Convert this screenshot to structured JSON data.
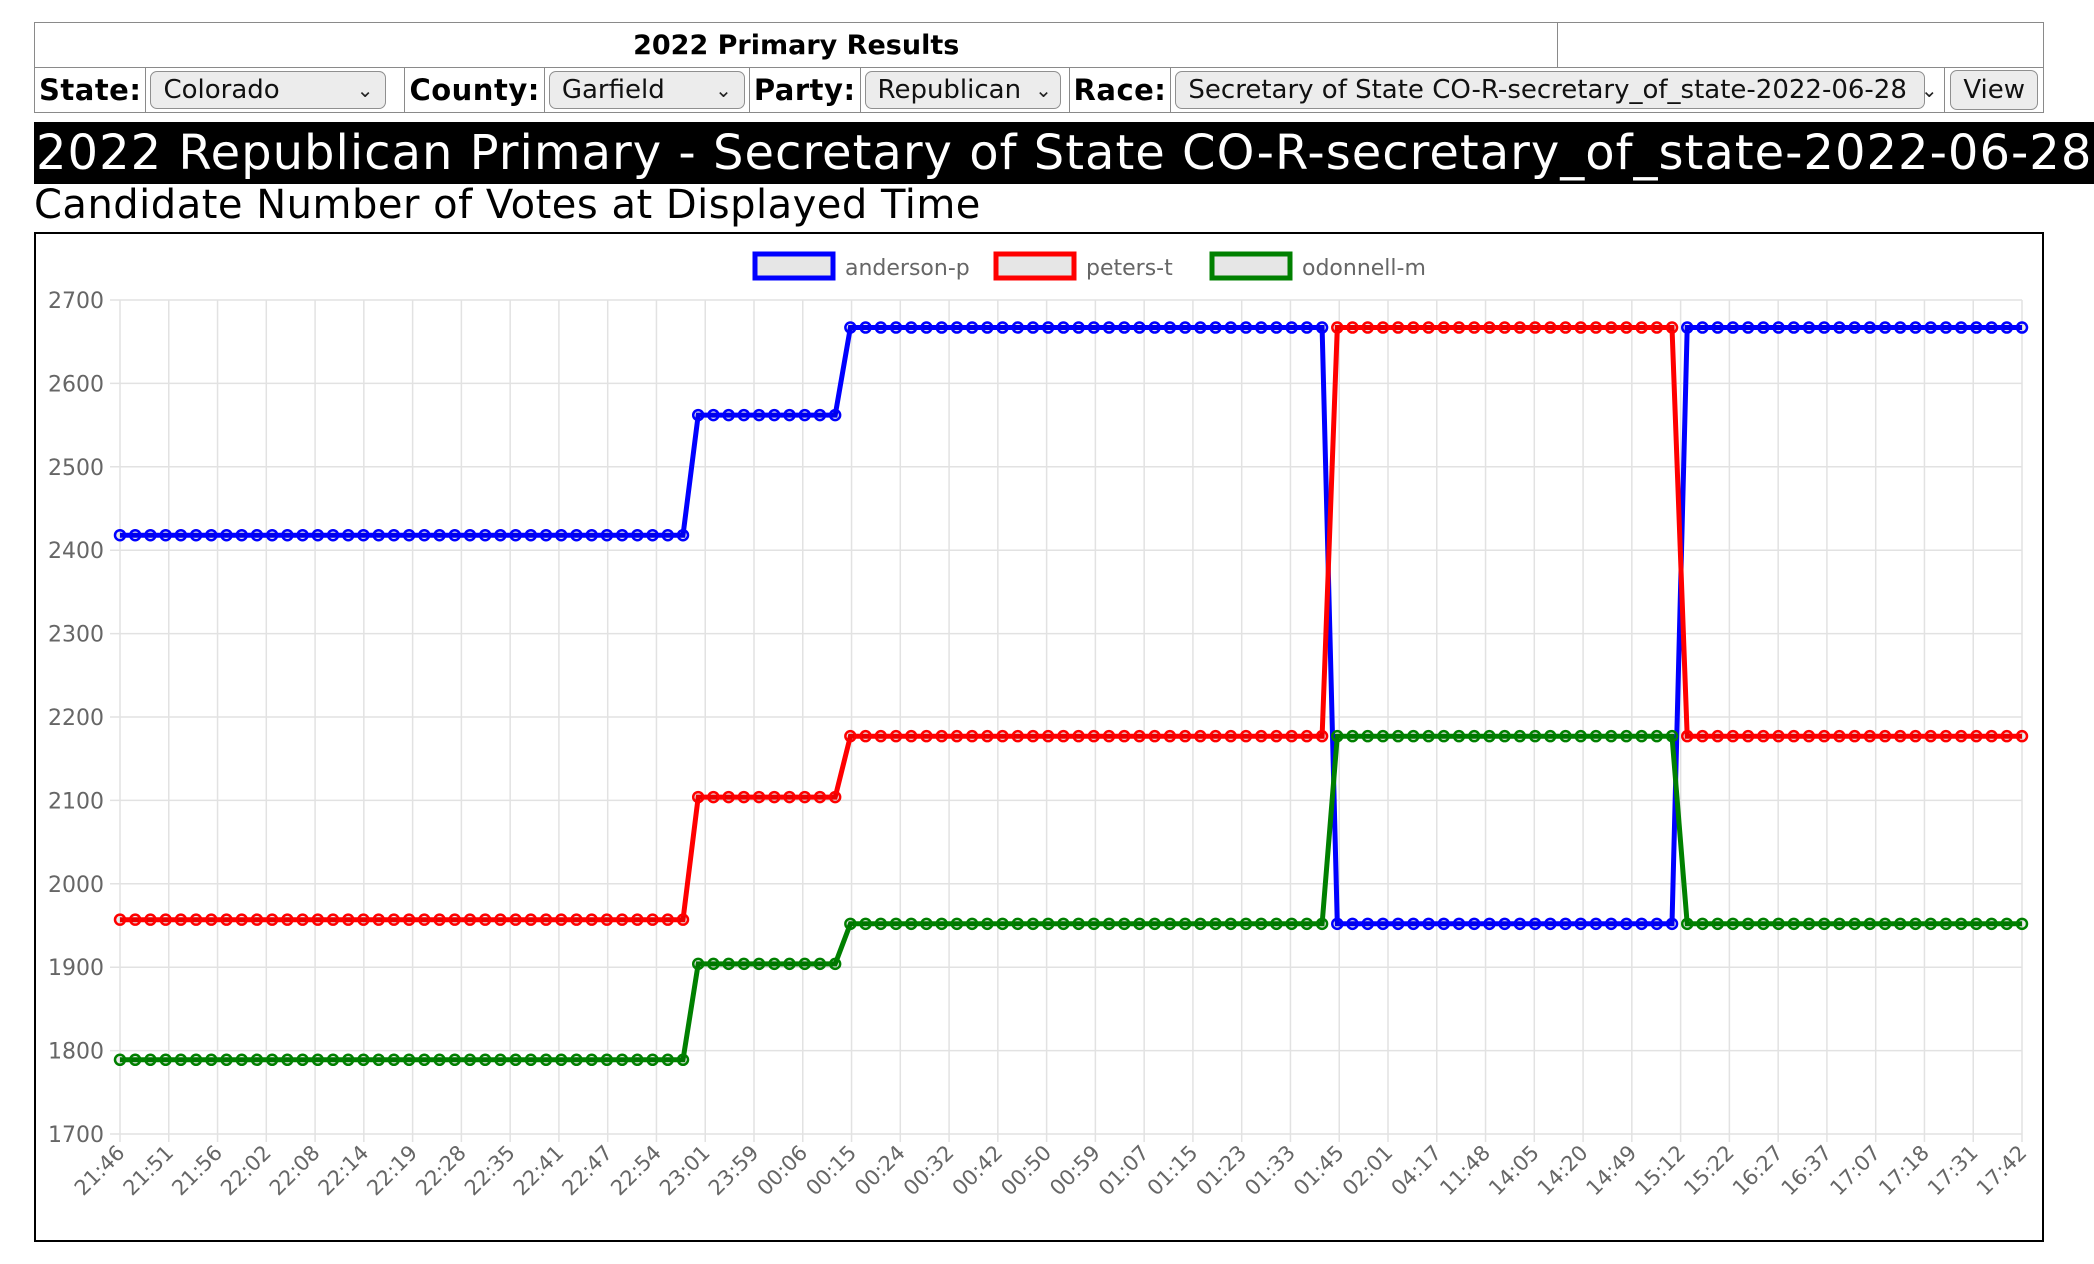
{
  "controls": {
    "header": "2022 Primary Results",
    "state_label": "State:",
    "state_value": "Colorado",
    "county_label": "County:",
    "county_value": "Garfield",
    "party_label": "Party:",
    "party_value": "Republican",
    "race_label": "Race:",
    "race_value": "Secretary of State CO-R-secretary_of_state-2022-06-28",
    "view_button": "View",
    "chevron_icon": "chevron-down-icon"
  },
  "page": {
    "title": "2022 Republican Primary - Secretary of State CO-R-secretary_of_state-2022-06-28",
    "subtitle": "Candidate Number of Votes at Displayed Time"
  },
  "chart_data": {
    "type": "line",
    "x_labels": [
      "21:46",
      "21:51",
      "21:56",
      "22:02",
      "22:08",
      "22:14",
      "22:19",
      "22:28",
      "22:35",
      "22:41",
      "22:47",
      "22:54",
      "23:01",
      "23:59",
      "00:06",
      "00:15",
      "00:24",
      "00:32",
      "00:42",
      "00:50",
      "00:59",
      "01:07",
      "01:15",
      "01:23",
      "01:33",
      "01:45",
      "02:01",
      "04:17",
      "11:48",
      "14:05",
      "14:20",
      "14:49",
      "15:12",
      "15:22",
      "16:27",
      "16:37",
      "17:07",
      "17:18",
      "17:31",
      "17:42"
    ],
    "ylim": [
      1700,
      2700
    ],
    "yticks": [
      1700,
      1800,
      1900,
      2000,
      2100,
      2200,
      2300,
      2400,
      2500,
      2600,
      2700
    ],
    "grid": true,
    "legend_position": "top-center",
    "series": [
      {
        "name": "anderson-p",
        "color": "#0000ff",
        "segments": [
          [
            0,
            2418
          ],
          [
            37,
            2418
          ],
          [
            38,
            2562
          ],
          [
            47,
            2562
          ],
          [
            48,
            2667
          ],
          [
            79,
            2667
          ],
          [
            80,
            1952
          ],
          [
            102,
            1952
          ],
          [
            103,
            2667
          ],
          [
            125,
            2667
          ]
        ]
      },
      {
        "name": "peters-t",
        "color": "#ff0000",
        "segments": [
          [
            0,
            1957
          ],
          [
            37,
            1957
          ],
          [
            38,
            2104
          ],
          [
            47,
            2104
          ],
          [
            48,
            2177
          ],
          [
            79,
            2177
          ],
          [
            80,
            2667
          ],
          [
            102,
            2667
          ],
          [
            103,
            2177
          ],
          [
            125,
            2177
          ]
        ]
      },
      {
        "name": "odonnell-m",
        "color": "#008000",
        "segments": [
          [
            0,
            1789
          ],
          [
            37,
            1789
          ],
          [
            38,
            1904
          ],
          [
            47,
            1904
          ],
          [
            48,
            1952
          ],
          [
            79,
            1952
          ],
          [
            80,
            2177
          ],
          [
            102,
            2177
          ],
          [
            103,
            1952
          ],
          [
            125,
            1952
          ]
        ]
      }
    ],
    "point_count": 126
  }
}
